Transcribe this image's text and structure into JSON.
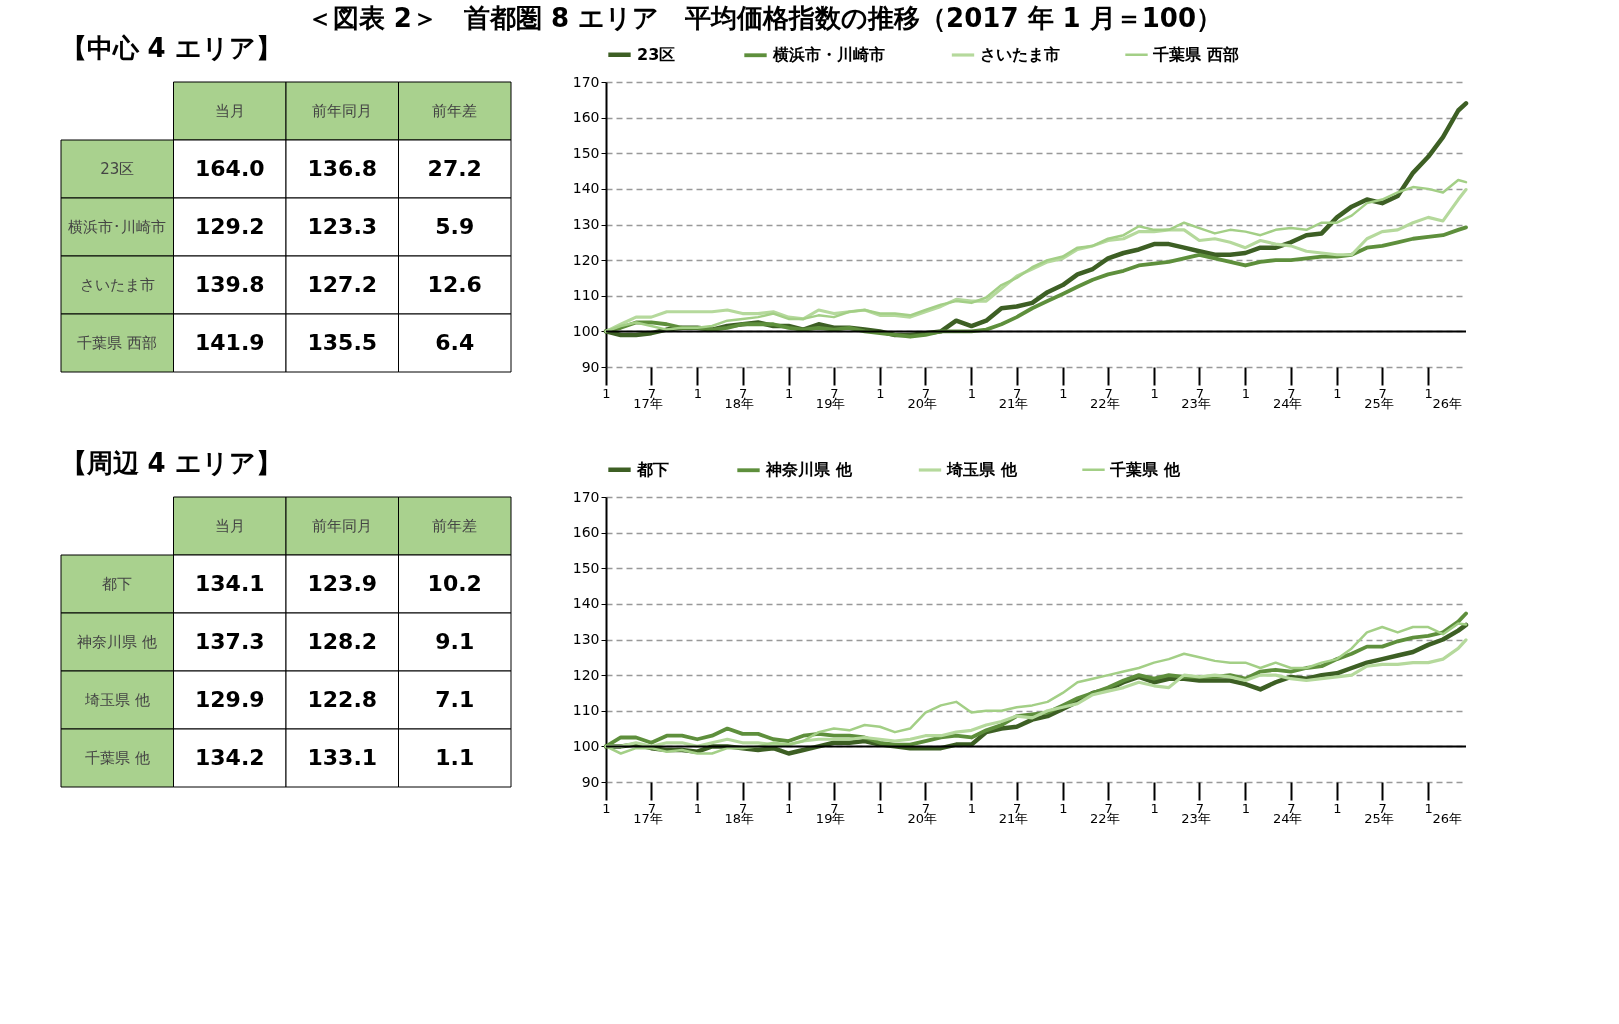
{
  "chart_data": [
    {
      "type": "other",
      "title": "【中心 4 エリア】",
      "categories": [
        "当月",
        "前年同月",
        "前年差"
      ],
      "y_categories": [
        "23区",
        "横浜市･川崎市",
        "さいたま市",
        "千葉県 西部"
      ],
      "cell_labels": [
        [
          "164.0",
          "136.8",
          "27.2"
        ],
        [
          "129.2",
          "123.3",
          "5.9"
        ],
        [
          "139.8",
          "127.2",
          "12.6"
        ],
        [
          "141.9",
          "135.5",
          "6.4"
        ]
      ]
    },
    {
      "type": "line",
      "title": "＜図表 2＞　首都圏 8 エリア　平均価格指数の推移（2017 年 1 月＝100）",
      "x": [
        "2017-01",
        "2017-03",
        "2017-05",
        "2017-07",
        "2017-09",
        "2017-11",
        "2018-01",
        "2018-03",
        "2018-05",
        "2018-07",
        "2018-09",
        "2018-11",
        "2019-01",
        "2019-03",
        "2019-05",
        "2019-07",
        "2019-09",
        "2019-11",
        "2020-01",
        "2020-03",
        "2020-05",
        "2020-07",
        "2020-09",
        "2020-11",
        "2021-01",
        "2021-03",
        "2021-05",
        "2021-07",
        "2021-09",
        "2021-11",
        "2022-01",
        "2022-03",
        "2022-05",
        "2022-07",
        "2022-09",
        "2022-11",
        "2023-01",
        "2023-03",
        "2023-05",
        "2023-07",
        "2023-09",
        "2023-11",
        "2024-01",
        "2024-03",
        "2024-05",
        "2024-07",
        "2024-09",
        "2024-11",
        "2025-01",
        "2025-03",
        "2025-05",
        "2025-07",
        "2025-09",
        "2025-11",
        "2026-01",
        "2026-03",
        "2026-05",
        "2026-06"
      ],
      "series": [
        {
          "name": "23区",
          "color": "#3d5f24",
          "values": [
            100,
            99,
            99,
            99.5,
            100.5,
            101,
            101,
            100.5,
            101.5,
            102,
            102.5,
            101.5,
            101.5,
            100.5,
            102,
            101,
            101,
            100.5,
            100,
            99,
            99,
            99.5,
            100,
            103,
            101.5,
            103,
            106.5,
            107,
            108,
            111,
            113,
            116,
            117.5,
            120.5,
            122,
            123,
            124.5,
            124.5,
            123.5,
            122.5,
            121.5,
            121.5,
            122,
            123.5,
            123.5,
            125,
            127,
            127.5,
            132,
            135,
            137,
            136,
            138,
            144.5,
            149,
            154.5,
            162,
            164.0
          ]
        },
        {
          "name": "横浜市・川崎市",
          "color": "#5e8f3c",
          "values": [
            100,
            101,
            102.5,
            102.5,
            102,
            101,
            101,
            100.5,
            101,
            102,
            102,
            102,
            101,
            100.5,
            101,
            100.5,
            101,
            100,
            99.5,
            99,
            98.5,
            99,
            100,
            100,
            100,
            100.5,
            102,
            104,
            106.5,
            108.5,
            110.5,
            112.5,
            114.5,
            116,
            117,
            118.5,
            119,
            119.5,
            120.5,
            121.5,
            120.5,
            119.5,
            118.5,
            119.5,
            120,
            120,
            120.5,
            121,
            121,
            121.5,
            123.5,
            124,
            125,
            126,
            126.5,
            127,
            128.5,
            129.2
          ]
        },
        {
          "name": "さいたま市",
          "color": "#b5d99c",
          "values": [
            100,
            102,
            104,
            104,
            105.5,
            105.5,
            105.5,
            105.5,
            106,
            105,
            105,
            105.5,
            104,
            103.5,
            106,
            105,
            105.5,
            106,
            104.5,
            104.5,
            104,
            105.5,
            107,
            109,
            108.5,
            108.5,
            112,
            115.5,
            117.5,
            119.5,
            120.5,
            123,
            124,
            125.5,
            126,
            128,
            128,
            128.5,
            128.5,
            125.5,
            126,
            125,
            123.5,
            125.5,
            124.5,
            124,
            122.5,
            122,
            121.5,
            121.5,
            126,
            128,
            128.5,
            130.5,
            132,
            131,
            137,
            139.8
          ]
        },
        {
          "name": "千葉県 西部",
          "color": "#a3cf86",
          "values": [
            100,
            101.5,
            102.5,
            101.5,
            100.5,
            101,
            101,
            101.5,
            103,
            103.5,
            104,
            105,
            103.5,
            103.5,
            104.5,
            104,
            105.5,
            106,
            105,
            105,
            104.5,
            106,
            107.5,
            108.5,
            108,
            109.5,
            113,
            115,
            118,
            120,
            121,
            123.5,
            124,
            126,
            127,
            129.5,
            128.5,
            128.5,
            130.5,
            129,
            127.5,
            128.5,
            128,
            127,
            128.5,
            129,
            128.5,
            130.5,
            130.5,
            132.5,
            136,
            137,
            139,
            140.5,
            140,
            139,
            142.5,
            141.9
          ]
        }
      ],
      "xlim": [
        "2017-01",
        "2026-06"
      ],
      "xticks": [
        {
          "value": "2017-01",
          "label": "1"
        },
        {
          "value": "2017-07",
          "label": "7"
        },
        {
          "value": "2018-01",
          "label": "1"
        },
        {
          "value": "2018-07",
          "label": "7"
        },
        {
          "value": "2019-01",
          "label": "1"
        },
        {
          "value": "2019-07",
          "label": "7"
        },
        {
          "value": "2020-01",
          "label": "1"
        },
        {
          "value": "2020-07",
          "label": "7"
        },
        {
          "value": "2021-01",
          "label": "1"
        },
        {
          "value": "2021-07",
          "label": "7"
        },
        {
          "value": "2022-01",
          "label": "1"
        },
        {
          "value": "2022-07",
          "label": "7"
        },
        {
          "value": "2023-01",
          "label": "1"
        },
        {
          "value": "2023-07",
          "label": "7"
        },
        {
          "value": "2024-01",
          "label": "1"
        },
        {
          "value": "2024-07",
          "label": "7"
        },
        {
          "value": "2025-01",
          "label": "1"
        },
        {
          "value": "2025-07",
          "label": "7"
        },
        {
          "value": "2026-01",
          "label": "1"
        }
      ],
      "x2lim": [
        "2017-01",
        "2026-06"
      ],
      "x2ticks": [
        {
          "value": "2017-06-16",
          "label": "17年"
        },
        {
          "value": "2018-06-16",
          "label": "18年"
        },
        {
          "value": "2019-06-16",
          "label": "19年"
        },
        {
          "value": "2020-06-16",
          "label": "20年"
        },
        {
          "value": "2021-06-16",
          "label": "21年"
        },
        {
          "value": "2022-06-16",
          "label": "22年"
        },
        {
          "value": "2023-06-16",
          "label": "23年"
        },
        {
          "value": "2024-06-16",
          "label": "24年"
        },
        {
          "value": "2025-06-16",
          "label": "25年"
        },
        {
          "value": "2026-03-16",
          "label": "26年"
        }
      ],
      "ylim": [
        90,
        170
      ],
      "yticks": [
        90,
        100,
        110,
        120,
        130,
        140,
        150,
        160,
        170
      ],
      "ref_lines": [
        {
          "axis": "y",
          "value": 100,
          "color": "#000000"
        }
      ],
      "grid": "y",
      "legend": "top",
      "marker": "none",
      "line_style": "solid"
    },
    {
      "type": "other",
      "title": "【周辺 4 エリア】",
      "categories": [
        "当月",
        "前年同月",
        "前年差"
      ],
      "y_categories": [
        "都下",
        "神奈川県 他",
        "埼玉県 他",
        "千葉県 他"
      ],
      "cell_labels": [
        [
          "134.1",
          "123.9",
          "10.2"
        ],
        [
          "137.3",
          "128.2",
          "9.1"
        ],
        [
          "129.9",
          "122.8",
          "7.1"
        ],
        [
          "134.2",
          "133.1",
          "1.1"
        ]
      ]
    },
    {
      "type": "line",
      "x": [
        "2017-01",
        "2017-03",
        "2017-05",
        "2017-07",
        "2017-09",
        "2017-11",
        "2018-01",
        "2018-03",
        "2018-05",
        "2018-07",
        "2018-09",
        "2018-11",
        "2019-01",
        "2019-03",
        "2019-05",
        "2019-07",
        "2019-09",
        "2019-11",
        "2020-01",
        "2020-03",
        "2020-05",
        "2020-07",
        "2020-09",
        "2020-11",
        "2021-01",
        "2021-03",
        "2021-05",
        "2021-07",
        "2021-09",
        "2021-11",
        "2022-01",
        "2022-03",
        "2022-05",
        "2022-07",
        "2022-09",
        "2022-11",
        "2023-01",
        "2023-03",
        "2023-05",
        "2023-07",
        "2023-09",
        "2023-11",
        "2024-01",
        "2024-03",
        "2024-05",
        "2024-07",
        "2024-09",
        "2024-11",
        "2025-01",
        "2025-03",
        "2025-05",
        "2025-07",
        "2025-09",
        "2025-11",
        "2026-01",
        "2026-03",
        "2026-05",
        "2026-06"
      ],
      "series": [
        {
          "name": "都下",
          "color": "#3d5f24",
          "values": [
            100,
            100,
            100.5,
            99.5,
            99,
            99,
            98.5,
            100,
            100,
            99.5,
            99,
            99.5,
            98,
            99,
            100,
            101,
            101,
            101.5,
            100.5,
            100,
            99.5,
            99.5,
            99.5,
            100.5,
            100.5,
            104,
            105,
            105.5,
            107.5,
            108.5,
            110.5,
            112.5,
            115,
            116,
            118,
            119.5,
            118,
            119,
            119,
            118.5,
            118.5,
            118.5,
            117.5,
            116,
            118,
            119.5,
            119,
            120,
            120.5,
            122,
            123.5,
            124.5,
            125.5,
            126.5,
            128.5,
            130,
            132.5,
            134.1
          ]
        },
        {
          "name": "神奈川県 他",
          "color": "#5e8f3c",
          "values": [
            100,
            102.5,
            102.5,
            101,
            103,
            103,
            102,
            103,
            105,
            103.5,
            103.5,
            102,
            101.5,
            103,
            103.5,
            103,
            103,
            102.5,
            101,
            100.5,
            100.5,
            101.5,
            102.5,
            103,
            102.5,
            104.5,
            106,
            108.5,
            109,
            109.5,
            111.5,
            113.5,
            115,
            116.5,
            118.5,
            120,
            119,
            120,
            119.5,
            119.5,
            119.5,
            120,
            119,
            121,
            121.5,
            121,
            122,
            122.5,
            124.5,
            126,
            128,
            128,
            129.5,
            130.5,
            131,
            132,
            135,
            137.3
          ]
        },
        {
          "name": "埼玉県 他",
          "color": "#b5d99c",
          "values": [
            100,
            100,
            101,
            100,
            101,
            101,
            100,
            101,
            102,
            101,
            101,
            100.5,
            100.5,
            101.5,
            102,
            102,
            102,
            102.5,
            102,
            101.5,
            102,
            103,
            103,
            104,
            104.5,
            106,
            107,
            108.5,
            108,
            110,
            111,
            112,
            114.5,
            115.5,
            116.5,
            118,
            117,
            116.5,
            120,
            119.5,
            120,
            119.5,
            118.5,
            120,
            120,
            119,
            118.5,
            119,
            119.5,
            120,
            122.5,
            123,
            123,
            123.5,
            123.5,
            124.5,
            127.5,
            129.9
          ]
        },
        {
          "name": "千葉県 他",
          "color": "#a3cf86",
          "values": [
            100,
            98,
            99.5,
            99.5,
            98.5,
            99,
            98,
            98,
            99.5,
            99.5,
            100,
            101,
            100.5,
            101.5,
            104,
            105,
            104.5,
            106,
            105.5,
            104,
            105,
            109.5,
            111.5,
            112.5,
            109.5,
            110,
            110,
            111,
            111.5,
            112.5,
            115,
            118,
            119,
            120,
            121,
            122,
            123.5,
            124.5,
            126,
            125,
            124,
            123.5,
            123.5,
            122,
            123.5,
            122,
            122,
            123.5,
            124.5,
            127.5,
            132,
            133.5,
            132,
            133.5,
            133.5,
            131.5,
            134.5,
            134.2
          ]
        }
      ],
      "xlim": [
        "2017-01",
        "2026-06"
      ],
      "xticks": [
        {
          "value": "2017-01",
          "label": "1"
        },
        {
          "value": "2017-07",
          "label": "7"
        },
        {
          "value": "2018-01",
          "label": "1"
        },
        {
          "value": "2018-07",
          "label": "7"
        },
        {
          "value": "2019-01",
          "label": "1"
        },
        {
          "value": "2019-07",
          "label": "7"
        },
        {
          "value": "2020-01",
          "label": "1"
        },
        {
          "value": "2020-07",
          "label": "7"
        },
        {
          "value": "2021-01",
          "label": "1"
        },
        {
          "value": "2021-07",
          "label": "7"
        },
        {
          "value": "2022-01",
          "label": "1"
        },
        {
          "value": "2022-07",
          "label": "7"
        },
        {
          "value": "2023-01",
          "label": "1"
        },
        {
          "value": "2023-07",
          "label": "7"
        },
        {
          "value": "2024-01",
          "label": "1"
        },
        {
          "value": "2024-07",
          "label": "7"
        },
        {
          "value": "2025-01",
          "label": "1"
        },
        {
          "value": "2025-07",
          "label": "7"
        },
        {
          "value": "2026-01",
          "label": "1"
        }
      ],
      "x2lim": [
        "2017-01",
        "2026-06"
      ],
      "x2ticks": [
        {
          "value": "2017-06-16",
          "label": "17年"
        },
        {
          "value": "2018-06-16",
          "label": "18年"
        },
        {
          "value": "2019-06-16",
          "label": "19年"
        },
        {
          "value": "2020-06-16",
          "label": "20年"
        },
        {
          "value": "2021-06-16",
          "label": "21年"
        },
        {
          "value": "2022-06-16",
          "label": "22年"
        },
        {
          "value": "2023-06-16",
          "label": "23年"
        },
        {
          "value": "2024-06-16",
          "label": "24年"
        },
        {
          "value": "2025-06-16",
          "label": "25年"
        },
        {
          "value": "2026-03-16",
          "label": "26年"
        }
      ],
      "ylim": [
        90,
        170
      ],
      "yticks": [
        90,
        100,
        110,
        120,
        130,
        140,
        150,
        160,
        170
      ],
      "ref_lines": [
        {
          "axis": "y",
          "value": 100,
          "color": "#000000"
        }
      ],
      "grid": "y",
      "legend": "top",
      "marker": "none",
      "line_style": "solid"
    }
  ]
}
